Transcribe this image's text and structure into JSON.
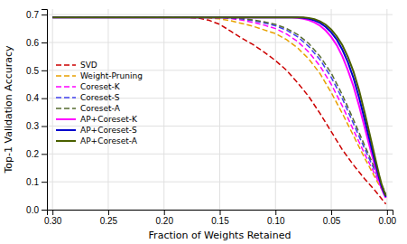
{
  "chart_data": {
    "type": "line",
    "x_label": "Fraction of Weights Retained",
    "y_label": "Top-1 Validation Accuracy",
    "xlim": [
      0.305,
      -0.005
    ],
    "ylim": [
      0.0,
      0.72
    ],
    "xticks": [
      {
        "value": 0.3,
        "label": "0.30"
      },
      0.25,
      {
        "value": 0.2,
        "label": "0.20"
      },
      0.15,
      {
        "value": 0.1,
        "label": "0.10"
      },
      0.05,
      {
        "value": 0.0,
        "label": "0.00"
      }
    ],
    "yticks": [
      {
        "value": 0.0,
        "label": "0.0"
      },
      0.1,
      0.2,
      0.3,
      0.4,
      0.5,
      0.6,
      0.7
    ],
    "grid": true,
    "legend": "upper left",
    "series": [
      {
        "name": "SVD",
        "color": "#cc0000",
        "line_style": "dashed",
        "x": [
          0.3,
          0.25,
          0.2,
          0.18,
          0.17,
          0.16,
          0.15,
          0.14,
          0.13,
          0.12,
          0.11,
          0.1,
          0.09,
          0.08,
          0.07,
          0.06,
          0.05,
          0.04,
          0.03,
          0.02,
          0.01,
          0.005,
          0.001
        ],
        "values": [
          0.69,
          0.69,
          0.69,
          0.69,
          0.688,
          0.68,
          0.665,
          0.64,
          0.615,
          0.592,
          0.565,
          0.535,
          0.5,
          0.455,
          0.405,
          0.345,
          0.28,
          0.215,
          0.16,
          0.11,
          0.065,
          0.04,
          0.02
        ]
      },
      {
        "name": "Weight-Pruning",
        "color": "#e8a000",
        "line_style": "dashed",
        "x": [
          0.3,
          0.25,
          0.2,
          0.18,
          0.17,
          0.16,
          0.15,
          0.14,
          0.13,
          0.12,
          0.11,
          0.1,
          0.09,
          0.08,
          0.07,
          0.06,
          0.05,
          0.04,
          0.03,
          0.02,
          0.01,
          0.005,
          0.001
        ],
        "values": [
          0.69,
          0.69,
          0.69,
          0.69,
          0.69,
          0.688,
          0.685,
          0.678,
          0.668,
          0.658,
          0.645,
          0.632,
          0.61,
          0.58,
          0.54,
          0.488,
          0.42,
          0.345,
          0.265,
          0.185,
          0.11,
          0.075,
          0.05
        ]
      },
      {
        "name": "Coreset-K",
        "color": "#ff00ff",
        "line_style": "dashed",
        "x": [
          0.3,
          0.25,
          0.2,
          0.18,
          0.17,
          0.16,
          0.15,
          0.14,
          0.13,
          0.12,
          0.11,
          0.1,
          0.09,
          0.08,
          0.07,
          0.06,
          0.05,
          0.04,
          0.03,
          0.02,
          0.01,
          0.005,
          0.001
        ],
        "values": [
          0.69,
          0.69,
          0.69,
          0.69,
          0.69,
          0.69,
          0.689,
          0.686,
          0.68,
          0.672,
          0.662,
          0.65,
          0.63,
          0.603,
          0.565,
          0.515,
          0.45,
          0.372,
          0.285,
          0.2,
          0.12,
          0.078,
          0.05
        ]
      },
      {
        "name": "Coreset-S",
        "color": "#4040ee",
        "line_style": "dashed",
        "x": [
          0.3,
          0.25,
          0.2,
          0.18,
          0.17,
          0.16,
          0.15,
          0.14,
          0.13,
          0.12,
          0.11,
          0.1,
          0.09,
          0.08,
          0.07,
          0.06,
          0.05,
          0.04,
          0.03,
          0.02,
          0.01,
          0.005,
          0.001
        ],
        "values": [
          0.69,
          0.69,
          0.69,
          0.69,
          0.69,
          0.69,
          0.69,
          0.688,
          0.684,
          0.678,
          0.67,
          0.66,
          0.644,
          0.62,
          0.585,
          0.538,
          0.475,
          0.398,
          0.308,
          0.218,
          0.132,
          0.085,
          0.055
        ]
      },
      {
        "name": "Coreset-A",
        "color": "#556b2f",
        "line_style": "dashed",
        "x": [
          0.3,
          0.25,
          0.2,
          0.18,
          0.17,
          0.16,
          0.15,
          0.14,
          0.13,
          0.12,
          0.11,
          0.1,
          0.09,
          0.08,
          0.07,
          0.06,
          0.05,
          0.04,
          0.03,
          0.02,
          0.01,
          0.005,
          0.001
        ],
        "values": [
          0.69,
          0.69,
          0.69,
          0.69,
          0.69,
          0.69,
          0.69,
          0.689,
          0.686,
          0.681,
          0.674,
          0.665,
          0.65,
          0.628,
          0.596,
          0.55,
          0.49,
          0.412,
          0.322,
          0.23,
          0.14,
          0.09,
          0.058
        ]
      },
      {
        "name": "AP+Coreset-K",
        "color": "#ff00ff",
        "line_style": "solid",
        "x": [
          0.3,
          0.25,
          0.2,
          0.15,
          0.12,
          0.1,
          0.095,
          0.09,
          0.085,
          0.08,
          0.075,
          0.07,
          0.065,
          0.06,
          0.055,
          0.05,
          0.045,
          0.04,
          0.035,
          0.03,
          0.025,
          0.02,
          0.015,
          0.01,
          0.007,
          0.005,
          0.003,
          0.001
        ],
        "values": [
          0.69,
          0.69,
          0.69,
          0.69,
          0.69,
          0.69,
          0.69,
          0.69,
          0.69,
          0.688,
          0.685,
          0.68,
          0.672,
          0.66,
          0.643,
          0.62,
          0.59,
          0.55,
          0.5,
          0.442,
          0.372,
          0.295,
          0.218,
          0.145,
          0.102,
          0.078,
          0.058,
          0.042
        ]
      },
      {
        "name": "AP+Coreset-S",
        "color": "#0000cc",
        "line_style": "solid",
        "x": [
          0.3,
          0.25,
          0.2,
          0.15,
          0.12,
          0.1,
          0.095,
          0.09,
          0.085,
          0.08,
          0.075,
          0.07,
          0.065,
          0.06,
          0.055,
          0.05,
          0.045,
          0.04,
          0.035,
          0.03,
          0.025,
          0.02,
          0.015,
          0.01,
          0.007,
          0.005,
          0.003,
          0.001
        ],
        "values": [
          0.69,
          0.69,
          0.69,
          0.69,
          0.69,
          0.69,
          0.69,
          0.69,
          0.69,
          0.69,
          0.688,
          0.685,
          0.679,
          0.67,
          0.656,
          0.636,
          0.61,
          0.574,
          0.528,
          0.472,
          0.402,
          0.323,
          0.24,
          0.16,
          0.113,
          0.086,
          0.064,
          0.046
        ]
      },
      {
        "name": "AP+Coreset-A",
        "color": "#4a6000",
        "line_style": "solid",
        "x": [
          0.3,
          0.25,
          0.2,
          0.15,
          0.12,
          0.1,
          0.095,
          0.09,
          0.085,
          0.08,
          0.075,
          0.07,
          0.065,
          0.06,
          0.055,
          0.05,
          0.045,
          0.04,
          0.035,
          0.03,
          0.025,
          0.02,
          0.015,
          0.01,
          0.007,
          0.005,
          0.003,
          0.001
        ],
        "values": [
          0.69,
          0.69,
          0.69,
          0.69,
          0.69,
          0.69,
          0.69,
          0.69,
          0.69,
          0.69,
          0.69,
          0.688,
          0.684,
          0.676,
          0.664,
          0.646,
          0.622,
          0.59,
          0.548,
          0.495,
          0.428,
          0.348,
          0.262,
          0.175,
          0.124,
          0.094,
          0.07,
          0.05
        ]
      }
    ]
  }
}
